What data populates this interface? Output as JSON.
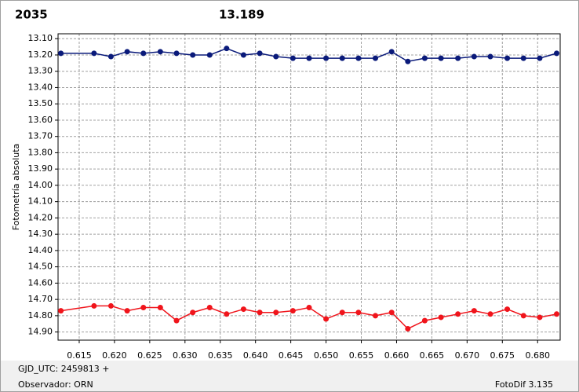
{
  "chart_data": {
    "type": "line",
    "annotations": [
      {
        "text": "2035",
        "color": "#e8141b"
      },
      {
        "text": "13.189",
        "color": "#1a237e"
      }
    ],
    "y_label": "Fotometría absoluta",
    "x": [
      0.6124,
      0.6171,
      0.6195,
      0.6218,
      0.6241,
      0.6265,
      0.6288,
      0.6311,
      0.6335,
      0.6359,
      0.6383,
      0.6406,
      0.6429,
      0.6453,
      0.6476,
      0.65,
      0.6523,
      0.6546,
      0.657,
      0.6593,
      0.6616,
      0.664,
      0.6663,
      0.6687,
      0.671,
      0.6733,
      0.6757,
      0.678,
      0.6803,
      0.6827
    ],
    "series": [
      {
        "color": "#0a1a7a",
        "values": [
          13.19,
          13.19,
          13.21,
          13.18,
          13.19,
          13.18,
          13.19,
          13.2,
          13.2,
          13.16,
          13.2,
          13.19,
          13.21,
          13.22,
          13.22,
          13.22,
          13.22,
          13.22,
          13.22,
          13.18,
          13.24,
          13.22,
          13.22,
          13.22,
          13.21,
          13.21,
          13.22,
          13.22,
          13.22,
          13.19
        ]
      },
      {
        "color": "#f0141b",
        "values": [
          14.77,
          14.74,
          14.74,
          14.77,
          14.75,
          14.75,
          14.83,
          14.78,
          14.75,
          14.79,
          14.76,
          14.78,
          14.78,
          14.77,
          14.75,
          14.82,
          14.78,
          14.78,
          14.8,
          14.78,
          14.88,
          14.83,
          14.81,
          14.79,
          14.77,
          14.79,
          14.76,
          14.8,
          14.81,
          14.79
        ]
      }
    ],
    "xlim": [
      0.612,
      0.6832
    ],
    "xticks": [
      {
        "value": 0.615,
        "label": "0.615"
      },
      {
        "value": 0.62,
        "label": "0.620"
      },
      {
        "value": 0.625,
        "label": "0.625"
      },
      {
        "value": 0.63,
        "label": "0.630"
      },
      {
        "value": 0.635,
        "label": "0.635"
      },
      {
        "value": 0.64,
        "label": "0.640"
      },
      {
        "value": 0.645,
        "label": "0.645"
      },
      {
        "value": 0.65,
        "label": "0.650"
      },
      {
        "value": 0.655,
        "label": "0.655"
      },
      {
        "value": 0.66,
        "label": "0.660"
      },
      {
        "value": 0.665,
        "label": "0.665"
      },
      {
        "value": 0.67,
        "label": "0.670"
      },
      {
        "value": 0.675,
        "label": "0.675"
      },
      {
        "value": 0.68,
        "label": "0.680"
      }
    ],
    "ylim": [
      13.07,
      14.95
    ],
    "y_inverted": true,
    "yticks": [
      {
        "value": 13.1,
        "label": "13.10"
      },
      {
        "value": 13.2,
        "label": "13.20"
      },
      {
        "value": 13.3,
        "label": "13.30"
      },
      {
        "value": 13.4,
        "label": "13.40"
      },
      {
        "value": 13.5,
        "label": "13.50"
      },
      {
        "value": 13.6,
        "label": "13.60"
      },
      {
        "value": 13.7,
        "label": "13.70"
      },
      {
        "value": 13.8,
        "label": "13.80"
      },
      {
        "value": 13.9,
        "label": "13.90"
      },
      {
        "value": 14.0,
        "label": "14.00"
      },
      {
        "value": 14.1,
        "label": "14.10"
      },
      {
        "value": 14.2,
        "label": "14.20"
      },
      {
        "value": 14.3,
        "label": "14.30"
      },
      {
        "value": 14.4,
        "label": "14.40"
      },
      {
        "value": 14.5,
        "label": "14.50"
      },
      {
        "value": 14.6,
        "label": "14.60"
      },
      {
        "value": 14.7,
        "label": "14.70"
      },
      {
        "value": 14.8,
        "label": "14.80"
      },
      {
        "value": 14.9,
        "label": "14.90"
      }
    ],
    "grid": true
  },
  "footer": {
    "left": [
      "GJD_UTC: 2459813 +",
      "Observador: ORN"
    ],
    "right": "FotoDif 3.135"
  }
}
